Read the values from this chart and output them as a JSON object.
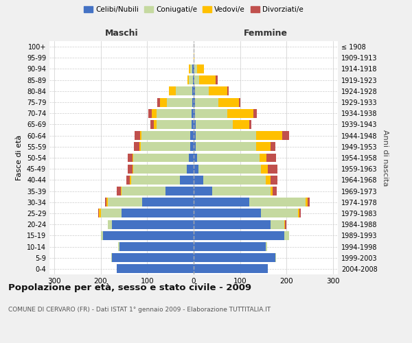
{
  "age_groups": [
    "0-4",
    "5-9",
    "10-14",
    "15-19",
    "20-24",
    "25-29",
    "30-34",
    "35-39",
    "40-44",
    "45-49",
    "50-54",
    "55-59",
    "60-64",
    "65-69",
    "70-74",
    "75-79",
    "80-84",
    "85-89",
    "90-94",
    "95-99",
    "100+"
  ],
  "birth_years": [
    "2004-2008",
    "1999-2003",
    "1994-1998",
    "1989-1993",
    "1984-1988",
    "1979-1983",
    "1974-1978",
    "1969-1973",
    "1964-1968",
    "1959-1963",
    "1954-1958",
    "1949-1953",
    "1944-1948",
    "1939-1943",
    "1934-1938",
    "1929-1933",
    "1924-1928",
    "1919-1923",
    "1914-1918",
    "1909-1913",
    "≤ 1908"
  ],
  "male": {
    "celibi": [
      165,
      175,
      160,
      195,
      175,
      155,
      110,
      60,
      30,
      15,
      10,
      8,
      7,
      5,
      5,
      3,
      3,
      2,
      3,
      0,
      0
    ],
    "coniugati": [
      0,
      2,
      2,
      5,
      10,
      45,
      75,
      95,
      105,
      115,
      120,
      105,
      105,
      75,
      75,
      55,
      35,
      8,
      5,
      0,
      0
    ],
    "vedovi": [
      0,
      0,
      0,
      0,
      0,
      3,
      2,
      2,
      2,
      2,
      2,
      3,
      3,
      5,
      10,
      15,
      15,
      4,
      3,
      0,
      0
    ],
    "divorziati": [
      0,
      0,
      0,
      0,
      0,
      2,
      3,
      8,
      8,
      10,
      10,
      12,
      12,
      8,
      8,
      5,
      0,
      0,
      0,
      0,
      0
    ]
  },
  "female": {
    "nubili": [
      160,
      175,
      155,
      195,
      165,
      145,
      120,
      40,
      20,
      10,
      7,
      5,
      5,
      4,
      3,
      3,
      3,
      2,
      2,
      0,
      0
    ],
    "coniugate": [
      0,
      2,
      3,
      10,
      30,
      80,
      120,
      125,
      135,
      135,
      135,
      130,
      130,
      80,
      70,
      50,
      30,
      10,
      5,
      0,
      0
    ],
    "vedove": [
      0,
      0,
      0,
      0,
      2,
      3,
      5,
      5,
      10,
      15,
      15,
      30,
      55,
      35,
      55,
      45,
      40,
      35,
      15,
      2,
      0
    ],
    "divorziate": [
      0,
      0,
      0,
      0,
      2,
      3,
      5,
      8,
      15,
      20,
      20,
      10,
      15,
      5,
      8,
      3,
      3,
      5,
      0,
      0,
      0
    ]
  },
  "colors": {
    "celibi": "#4472c4",
    "coniugati": "#c5d9a0",
    "vedovi": "#ffc000",
    "divorziati": "#c0504d"
  },
  "legend_labels": [
    "Celibi/Nubili",
    "Coniugati/e",
    "Vedovi/e",
    "Divorziati/e"
  ],
  "title": "Popolazione per età, sesso e stato civile - 2009",
  "subtitle": "COMUNE DI CERVARO (FR) - Dati ISTAT 1° gennaio 2009 - Elaborazione TUTTITALIA.IT",
  "xlabel_left": "Maschi",
  "xlabel_right": "Femmine",
  "ylabel_left": "Fasce di età",
  "ylabel_right": "Anni di nascita",
  "xlim": 310,
  "background_color": "#f0f0f0",
  "plot_background": "#ffffff"
}
